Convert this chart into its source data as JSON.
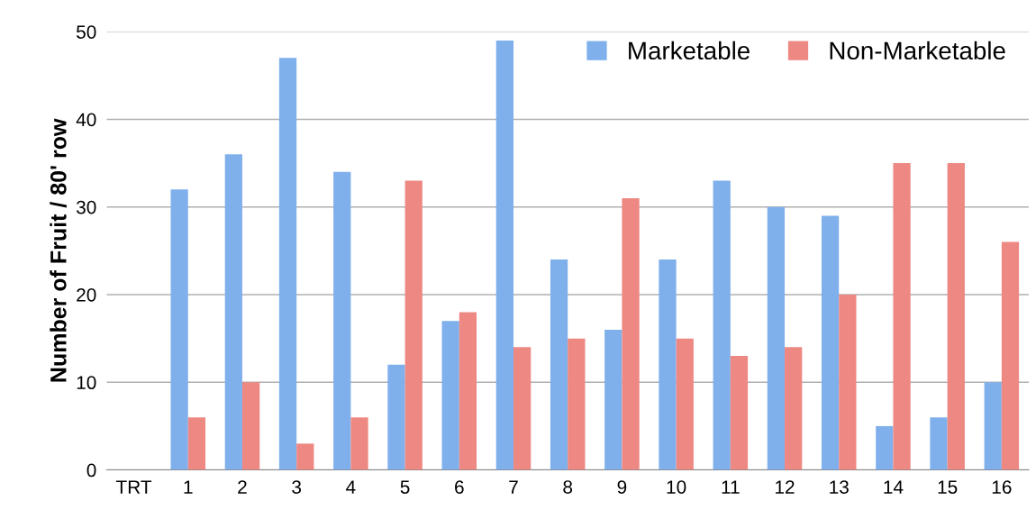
{
  "chart_data": {
    "type": "bar",
    "ylabel": "Number of Fruit / 80' row",
    "categories": [
      "TRT",
      "1",
      "2",
      "3",
      "4",
      "5",
      "6",
      "7",
      "8",
      "9",
      "10",
      "11",
      "12",
      "13",
      "14",
      "15",
      "16"
    ],
    "series": [
      {
        "name": "Marketable",
        "color": "#7fb0ec",
        "values": [
          null,
          32,
          36,
          47,
          34,
          12,
          17,
          49,
          24,
          16,
          24,
          33,
          30,
          29,
          5,
          6,
          10
        ]
      },
      {
        "name": "Non-Marketable",
        "color": "#ee8883",
        "values": [
          null,
          6,
          10,
          3,
          6,
          33,
          18,
          14,
          15,
          31,
          15,
          13,
          14,
          20,
          35,
          35,
          26
        ]
      }
    ],
    "ylim": [
      0,
      50
    ],
    "yticks": [
      0,
      10,
      20,
      30,
      40,
      50
    ],
    "grid": "y",
    "legend": "top right"
  }
}
